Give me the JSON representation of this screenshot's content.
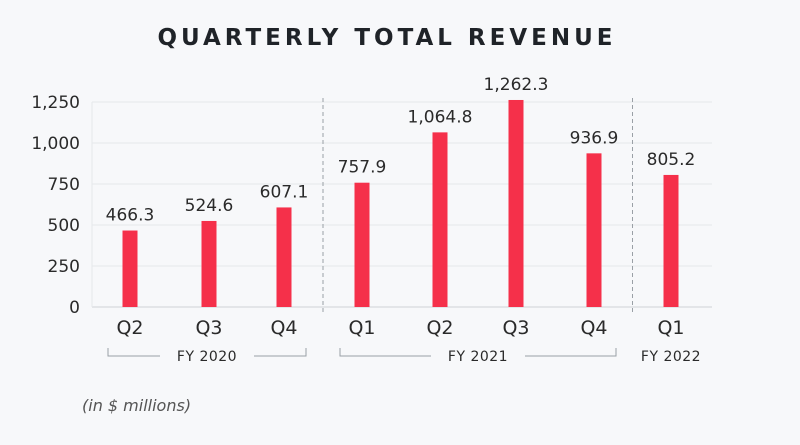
{
  "chart_data": {
    "type": "bar",
    "title": "QUARTERLY TOTAL REVENUE",
    "note": "(in $ millions)",
    "categories": [
      "Q2",
      "Q3",
      "Q4",
      "Q1",
      "Q2",
      "Q3",
      "Q4",
      "Q1"
    ],
    "values": [
      466.3,
      524.6,
      607.1,
      757.9,
      1064.8,
      1262.3,
      936.9,
      805.2
    ],
    "value_labels": [
      "466.3",
      "524.6",
      "607.1",
      "757.9",
      "1,064.8",
      "1,262.3",
      "936.9",
      "805.2"
    ],
    "groups": [
      {
        "label": "FY 2020",
        "start": 0,
        "end": 2
      },
      {
        "label": "FY 2021",
        "start": 3,
        "end": 6
      },
      {
        "label": "FY 2022",
        "start": 7,
        "end": 7
      }
    ],
    "yticks": [
      0,
      250,
      500,
      750,
      1000,
      1250
    ],
    "ytick_labels": [
      "0",
      "250",
      "500",
      "750",
      "1,000",
      "1,250"
    ],
    "ylim": [
      0,
      1250
    ],
    "grid": true,
    "bar_color": "#f5304a",
    "xlabel": "",
    "ylabel": ""
  }
}
